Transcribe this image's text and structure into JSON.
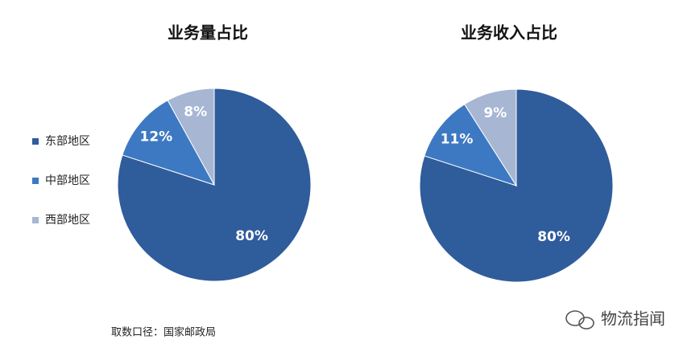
{
  "chart_data": [
    {
      "type": "pie",
      "title": "业务量占比",
      "values": [
        80,
        12,
        8
      ],
      "value_labels": [
        "80%",
        "12%",
        "8%"
      ]
    },
    {
      "type": "pie",
      "title": "业务收入占比",
      "values": [
        80,
        11,
        9
      ],
      "value_labels": [
        "80%",
        "11%",
        "9%"
      ]
    }
  ],
  "legend": {
    "categories": [
      "东部地区",
      "中部地区",
      "西部地区"
    ],
    "colors": [
      "#2f5c9b",
      "#3d79c2",
      "#a7b6d3"
    ]
  },
  "source": "取数口径：国家邮政局",
  "watermark": "物流指闻"
}
